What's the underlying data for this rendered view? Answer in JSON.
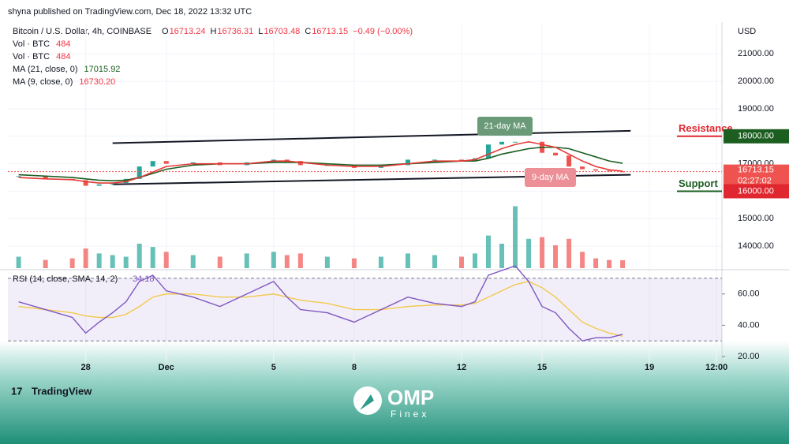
{
  "header": {
    "publisher": "shyna published on TradingView.com, Dec 18, 2022 13:32 UTC",
    "currency": "USD"
  },
  "legend": {
    "symbol": "Bitcoin / U.S. Dollar, 4h, COINBASE",
    "ohlc": [
      {
        "key": "O",
        "text": "16713.24"
      },
      {
        "key": "H",
        "text": "16736.31"
      },
      {
        "key": "L",
        "text": "16703.48"
      },
      {
        "key": "C",
        "text": "16713.15"
      }
    ],
    "change": "−0.49 (−0.00%)",
    "volume_rows": [
      {
        "name": "Vol · BTC",
        "text": "484"
      },
      {
        "name": "Vol · BTC",
        "text": "484"
      }
    ]
  },
  "chart_data": {
    "type": "candlestick",
    "xlim": [
      -2.9,
      23.7
    ],
    "xticks": [
      {
        "value": 0,
        "label": "28"
      },
      {
        "value": 3,
        "label": "Dec"
      },
      {
        "value": 7,
        "label": "5"
      },
      {
        "value": 10,
        "label": "8"
      },
      {
        "value": 14,
        "label": "12"
      },
      {
        "value": 17,
        "label": "15"
      },
      {
        "value": 21,
        "label": "19"
      },
      {
        "value": 23.5,
        "label": "12:00"
      }
    ],
    "ylim": [
      13200,
      22100
    ],
    "yticks": [
      {
        "value": 14000,
        "label": "14000.00"
      },
      {
        "value": 15000,
        "label": "15000.00"
      },
      {
        "value": 16000,
        "label": "16000.00"
      },
      {
        "value": 17000,
        "label": "17000.00"
      },
      {
        "value": 18000,
        "label": "18000.00"
      },
      {
        "value": 19000,
        "label": "19000.00"
      },
      {
        "value": 20000,
        "label": "20000.00"
      },
      {
        "value": 21000,
        "label": "21000.00"
      }
    ],
    "x": [
      -2.5,
      -1.5,
      -0.5,
      0,
      0.5,
      1,
      1.5,
      2,
      2.5,
      3,
      4,
      5,
      6,
      7,
      7.5,
      8,
      9,
      10,
      11,
      12,
      13,
      14,
      14.5,
      15,
      15.5,
      16,
      16.5,
      17,
      17.5,
      18,
      18.5,
      19,
      19.5,
      20
    ],
    "close": {
      "up_color": "#26a69a",
      "down_color": "#ef5350",
      "values": [
        16550,
        16450,
        16400,
        16200,
        16250,
        16300,
        16450,
        16900,
        17100,
        17000,
        17050,
        16950,
        17050,
        17150,
        17100,
        16950,
        16950,
        16850,
        16950,
        17150,
        17150,
        17100,
        17200,
        17700,
        17800,
        17800,
        17800,
        17400,
        17300,
        16900,
        16800,
        16750,
        16720,
        16713.15
      ]
    },
    "series": [
      {
        "name": "MA (21, close, 0)",
        "last_label": "17015.92",
        "color": "#1b5e20",
        "values": [
          16600,
          16550,
          16500,
          16450,
          16400,
          16380,
          16400,
          16500,
          16650,
          16800,
          16950,
          17000,
          17000,
          17050,
          17050,
          17050,
          17000,
          16950,
          16950,
          17000,
          17050,
          17100,
          17100,
          17200,
          17350,
          17450,
          17550,
          17600,
          17600,
          17550,
          17400,
          17250,
          17100,
          17015.92
        ]
      },
      {
        "name": "MA (9, close, 0)",
        "last_label": "16730.20",
        "color": "#e53935",
        "values": [
          16500,
          16450,
          16420,
          16350,
          16300,
          16300,
          16350,
          16500,
          16700,
          16900,
          17000,
          17000,
          17000,
          17100,
          17100,
          17050,
          16950,
          16900,
          16900,
          17000,
          17100,
          17100,
          17150,
          17350,
          17550,
          17700,
          17800,
          17700,
          17600,
          17350,
          17100,
          16900,
          16780,
          16730.2
        ]
      }
    ],
    "volume": {
      "ylim": [
        0,
        15000
      ],
      "values": [
        700,
        500,
        600,
        1200,
        900,
        800,
        700,
        1500,
        1300,
        1000,
        800,
        700,
        900,
        1000,
        800,
        900,
        700,
        600,
        700,
        900,
        800,
        700,
        900,
        2000,
        1500,
        3800,
        1800,
        1900,
        1400,
        1800,
        1000,
        600,
        500,
        484
      ]
    },
    "last_price": 16713.15,
    "countdown": "02:27:02",
    "channel": [
      {
        "x": [
          1,
          20.3
        ],
        "values": [
          17750,
          18200
        ]
      },
      {
        "x": [
          1,
          20.3
        ],
        "values": [
          16250,
          16600
        ]
      }
    ],
    "levels": [
      {
        "label": "Resistance",
        "color": "#e0262f",
        "box_color": "#1b5e20",
        "price": {
          "value": 18000,
          "label": "18000.00"
        }
      },
      {
        "label": "Support",
        "color": "#1b5e20",
        "box_color": "#e0262f",
        "price": {
          "value": 16000,
          "label": "16000.00"
        }
      }
    ],
    "annotations": [
      {
        "text": "21-day MA",
        "color": "#6a9a78"
      },
      {
        "text": "9-day MA",
        "color": "#ec8f96"
      }
    ],
    "rsi": {
      "name": "RSI (14, close, SMA, 14, 2)",
      "last_label": "34.18",
      "color": "#7e57c2",
      "sma_color": "#f2c94c",
      "ylim": [
        16,
        74
      ],
      "band": [
        30,
        70
      ],
      "yticks": [
        {
          "value": 20,
          "label": "20.00"
        },
        {
          "value": 40,
          "label": "40.00"
        },
        {
          "value": 60,
          "label": "60.00"
        }
      ],
      "values": [
        55,
        50,
        45,
        35,
        42,
        48,
        55,
        68,
        72,
        62,
        58,
        52,
        60,
        68,
        58,
        50,
        48,
        42,
        50,
        58,
        54,
        52,
        55,
        72,
        75,
        78,
        68,
        52,
        48,
        38,
        30,
        32,
        32,
        34.18
      ],
      "sma": [
        52,
        50,
        48,
        46,
        45,
        45,
        47,
        52,
        58,
        60,
        60,
        58,
        58,
        60,
        58,
        56,
        54,
        50,
        50,
        52,
        53,
        53,
        54,
        58,
        62,
        66,
        68,
        64,
        58,
        50,
        42,
        38,
        35,
        33
      ]
    }
  },
  "footer": {
    "brand": "TradingView",
    "logo": "OMP",
    "logo_sub": "Finex"
  }
}
